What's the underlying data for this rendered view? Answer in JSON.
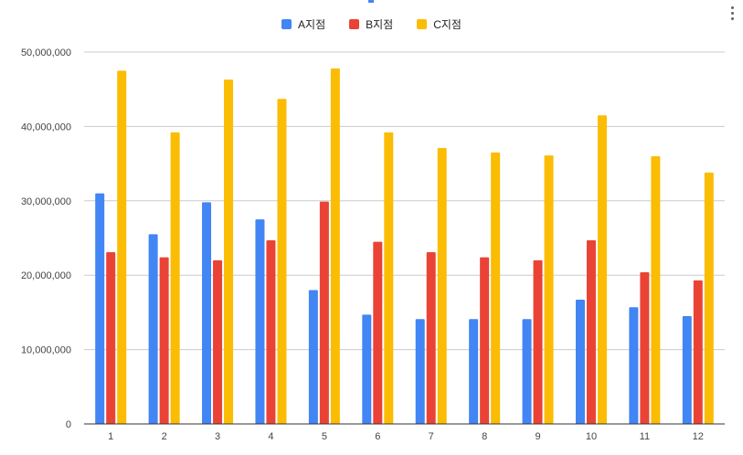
{
  "chart_data": {
    "type": "bar",
    "categories": [
      "1",
      "2",
      "3",
      "4",
      "5",
      "6",
      "7",
      "8",
      "9",
      "10",
      "11",
      "12"
    ],
    "series": [
      {
        "name": "A지점",
        "color": "#4285f4",
        "values": [
          31000000,
          25500000,
          29800000,
          27500000,
          18000000,
          14700000,
          14100000,
          14100000,
          14100000,
          16700000,
          15700000,
          14500000
        ]
      },
      {
        "name": "B지점",
        "color": "#ea4335",
        "values": [
          23100000,
          22400000,
          22000000,
          24700000,
          29900000,
          24500000,
          23100000,
          22400000,
          22000000,
          24700000,
          20400000,
          19300000
        ]
      },
      {
        "name": "C지점",
        "color": "#fbbc04",
        "values": [
          47500000,
          39200000,
          46300000,
          43700000,
          47800000,
          39200000,
          37100000,
          36500000,
          36100000,
          41500000,
          36000000,
          33800000
        ]
      }
    ],
    "yticks": [
      0,
      10000000,
      20000000,
      30000000,
      40000000,
      50000000
    ],
    "ytick_labels": [
      "0",
      "10,000,000",
      "20,000,000",
      "30,000,000",
      "40,000,000",
      "50,000,000"
    ],
    "ylim": [
      0,
      50000000
    ],
    "grid": true,
    "legend_position": "top-center"
  },
  "menu": {
    "icon": "more-vert-icon"
  }
}
